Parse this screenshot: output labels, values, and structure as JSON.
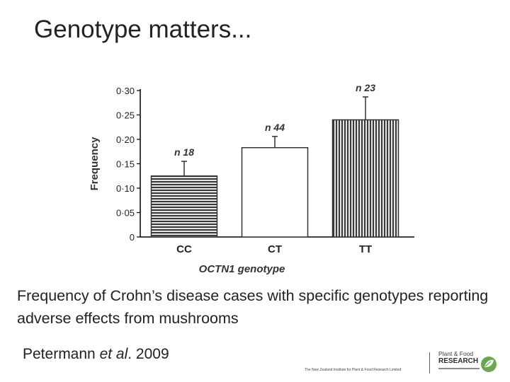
{
  "slide": {
    "title": "Genotype matters...",
    "caption": "Frequency of Crohn’s disease cases with specific genotypes reporting adverse effects from mushrooms",
    "citation_author": "Petermann ",
    "citation_etal": "et al",
    "citation_year": ". 2009"
  },
  "footer": {
    "institute": "The New Zealand Institute for Plant & Food Research Limited",
    "logo_line1": "Plant & Food",
    "logo_line2": "RESEARCH",
    "logo_icon": "leaf-logo-icon",
    "brand_color": "#6aa84f"
  },
  "chart_data": {
    "type": "bar",
    "xlabel": "OCTN1 genotype",
    "ylabel": "Frequency",
    "ylim": [
      0,
      0.3
    ],
    "grid": false,
    "yticks": [
      {
        "value": 0.3,
        "label": "0·30"
      },
      {
        "value": 0.25,
        "label": "0·25"
      },
      {
        "value": 0.2,
        "label": "0·20"
      },
      {
        "value": 0.15,
        "label": "0·15"
      },
      {
        "value": 0.1,
        "label": "0·10"
      },
      {
        "value": 0.05,
        "label": "0·05"
      },
      {
        "value": 0,
        "label": "0"
      }
    ],
    "categories": [
      "CC",
      "CT",
      "TT"
    ],
    "values": [
      0.125,
      0.183,
      0.24
    ],
    "error_upper": [
      0.155,
      0.206,
      0.287
    ],
    "n_labels": [
      "n 18",
      "n 44",
      "n 23"
    ],
    "bar_fills": [
      "horizontal-stripes",
      "white",
      "vertical-stripes"
    ]
  }
}
